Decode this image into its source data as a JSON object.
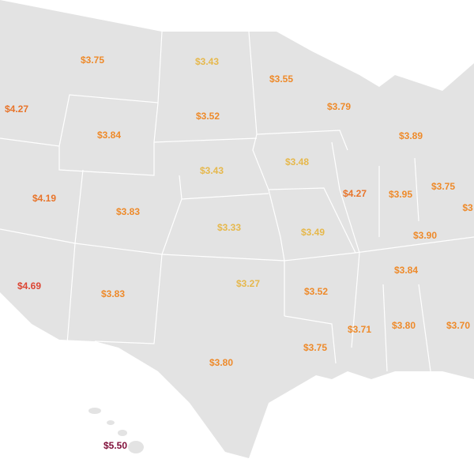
{
  "map": {
    "labels": [
      {
        "text": "$3.75",
        "color": "#ee8a2a"
      },
      {
        "text": "$3.43",
        "color": "#e6b84c"
      },
      {
        "text": "$3.55",
        "color": "#ee8a2a"
      },
      {
        "text": "$4.27",
        "color": "#e8742a"
      },
      {
        "text": "$3.52",
        "color": "#ee8a2a"
      },
      {
        "text": "$3.79",
        "color": "#ee8a2a"
      },
      {
        "text": "$3.84",
        "color": "#ee8a2a"
      },
      {
        "text": "$3.89",
        "color": "#ee8a2a"
      },
      {
        "text": "$3.43",
        "color": "#e6b84c"
      },
      {
        "text": "$3.48",
        "color": "#e6b84c"
      },
      {
        "text": "$4.19",
        "color": "#e8742a"
      },
      {
        "text": "$3.83",
        "color": "#ee8a2a"
      },
      {
        "text": "$4.27",
        "color": "#e8742a"
      },
      {
        "text": "$3.95",
        "color": "#ee8a2a"
      },
      {
        "text": "$3.75",
        "color": "#ee8a2a"
      },
      {
        "text": "$3",
        "color": "#ee8a2a"
      },
      {
        "text": "$3.33",
        "color": "#e6b84c"
      },
      {
        "text": "$3.49",
        "color": "#e6b84c"
      },
      {
        "text": "$3.90",
        "color": "#ee8a2a"
      },
      {
        "text": "$4.69",
        "color": "#dc4533"
      },
      {
        "text": "$3.83",
        "color": "#ee8a2a"
      },
      {
        "text": "$3.27",
        "color": "#e6b84c"
      },
      {
        "text": "$3.52",
        "color": "#ee8a2a"
      },
      {
        "text": "$3.84",
        "color": "#ee8a2a"
      },
      {
        "text": "$3.71",
        "color": "#ee8a2a"
      },
      {
        "text": "$3.80",
        "color": "#ee8a2a"
      },
      {
        "text": "$3.70",
        "color": "#ee8a2a"
      },
      {
        "text": "$3.75",
        "color": "#ee8a2a"
      },
      {
        "text": "$3.80",
        "color": "#ee8a2a"
      },
      {
        "text": "$5.50",
        "color": "#800f3a"
      }
    ]
  }
}
